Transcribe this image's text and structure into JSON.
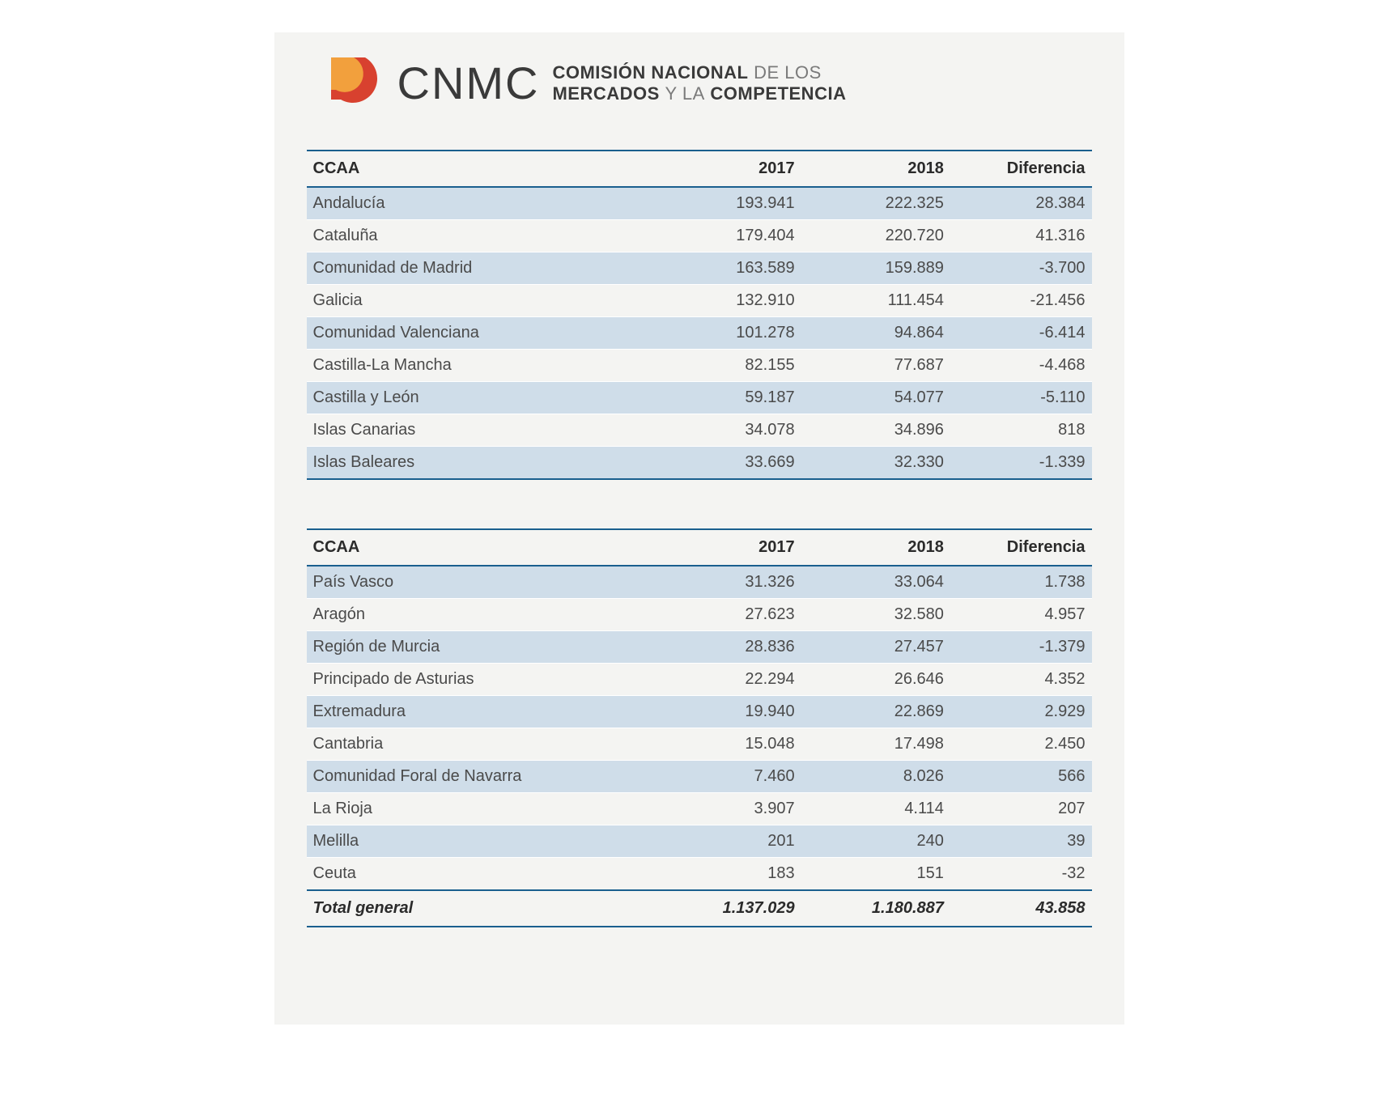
{
  "brand": {
    "cnmc": "CNMC",
    "line1_bold": "COMISIÓN NACIONAL",
    "line1_light": "DE LOS",
    "line2_bold1": "MERCADOS",
    "line2_light": "Y LA",
    "line2_bold2": "COMPETENCIA"
  },
  "colors": {
    "page_bg": "#f4f4f2",
    "rule": "#1a5f8e",
    "row_alt": "#cfdde9",
    "text": "#4a4a4a",
    "header_text": "#2b2b2b",
    "logo_red": "#d8412f",
    "logo_orange": "#f2a03d"
  },
  "table1": {
    "columns": [
      "CCAA",
      "2017",
      "2018",
      "Diferencia"
    ],
    "rows": [
      [
        "Andalucía",
        "193.941",
        "222.325",
        "28.384"
      ],
      [
        "Cataluña",
        "179.404",
        "220.720",
        "41.316"
      ],
      [
        "Comunidad de Madrid",
        "163.589",
        "159.889",
        "-3.700"
      ],
      [
        "Galicia",
        "132.910",
        "111.454",
        "-21.456"
      ],
      [
        "Comunidad Valenciana",
        "101.278",
        "94.864",
        "-6.414"
      ],
      [
        "Castilla-La Mancha",
        "82.155",
        "77.687",
        "-4.468"
      ],
      [
        "Castilla y León",
        "59.187",
        "54.077",
        "-5.110"
      ],
      [
        "Islas Canarias",
        "34.078",
        "34.896",
        "818"
      ],
      [
        "Islas Baleares",
        "33.669",
        "32.330",
        "-1.339"
      ]
    ]
  },
  "table2": {
    "columns": [
      "CCAA",
      "2017",
      "2018",
      "Diferencia"
    ],
    "rows": [
      [
        "País Vasco",
        "31.326",
        "33.064",
        "1.738"
      ],
      [
        "Aragón",
        "27.623",
        "32.580",
        "4.957"
      ],
      [
        "Región de Murcia",
        "28.836",
        "27.457",
        "-1.379"
      ],
      [
        "Principado de Asturias",
        "22.294",
        "26.646",
        "4.352"
      ],
      [
        "Extremadura",
        "19.940",
        "22.869",
        "2.929"
      ],
      [
        "Cantabria",
        "15.048",
        "17.498",
        "2.450"
      ],
      [
        "Comunidad Foral de Navarra",
        "7.460",
        "8.026",
        "566"
      ],
      [
        "La Rioja",
        "3.907",
        "4.114",
        "207"
      ],
      [
        "Melilla",
        "201",
        "240",
        "39"
      ],
      [
        "Ceuta",
        "183",
        "151",
        "-32"
      ]
    ],
    "footer": [
      "Total general",
      "1.137.029",
      "1.180.887",
      "43.858"
    ]
  }
}
